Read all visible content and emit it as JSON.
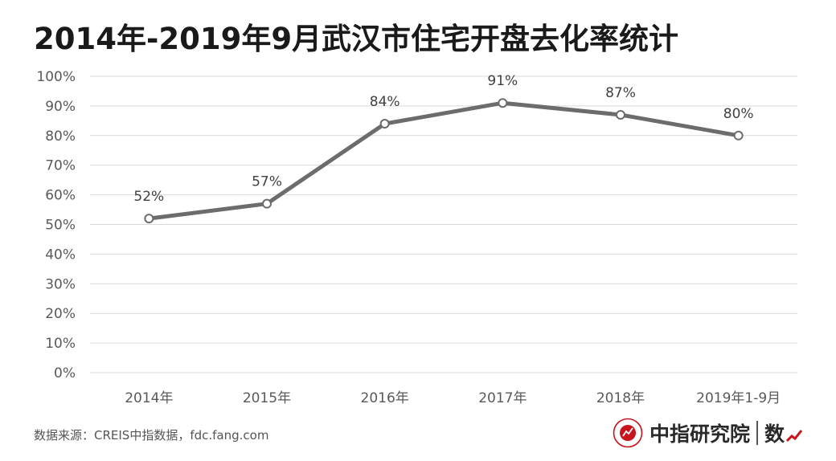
{
  "title": "2014年-2019年9月武汉市住宅开盘去化率统计",
  "footer": {
    "source": "数据来源：CREIS中指数据，fdc.fang.com",
    "brand_name": "中指研究院",
    "brand_suffix": "数"
  },
  "colors": {
    "line": "#6e6b6c",
    "grid": "#d9d9d9",
    "axis_text": "#595959",
    "brand_red": "#c8151d"
  },
  "chart_data": {
    "type": "line",
    "title": "2014年-2019年9月武汉市住宅开盘去化率统计",
    "categories": [
      "2014年",
      "2015年",
      "2016年",
      "2017年",
      "2018年",
      "2019年1-9月"
    ],
    "series": [
      {
        "values": [
          52,
          57,
          84,
          91,
          87,
          80
        ]
      }
    ],
    "data_labels": [
      "52%",
      "57%",
      "84%",
      "91%",
      "87%",
      "80%"
    ],
    "ylim": [
      0,
      100
    ],
    "yticks": [
      "0%",
      "10%",
      "20%",
      "30%",
      "40%",
      "50%",
      "60%",
      "70%",
      "80%",
      "90%",
      "100%"
    ],
    "grid": true,
    "legend": "none"
  }
}
